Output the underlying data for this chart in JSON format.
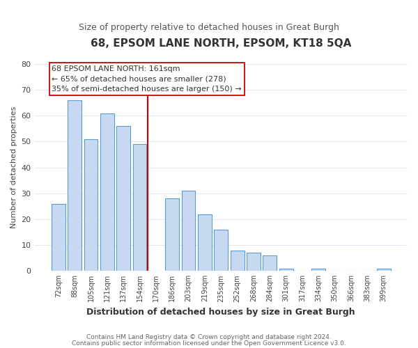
{
  "title": "68, EPSOM LANE NORTH, EPSOM, KT18 5QA",
  "subtitle": "Size of property relative to detached houses in Great Burgh",
  "xlabel": "Distribution of detached houses by size in Great Burgh",
  "ylabel": "Number of detached properties",
  "bar_labels": [
    "72sqm",
    "88sqm",
    "105sqm",
    "121sqm",
    "137sqm",
    "154sqm",
    "170sqm",
    "186sqm",
    "203sqm",
    "219sqm",
    "235sqm",
    "252sqm",
    "268sqm",
    "284sqm",
    "301sqm",
    "317sqm",
    "334sqm",
    "350sqm",
    "366sqm",
    "383sqm",
    "399sqm"
  ],
  "bar_heights": [
    26,
    66,
    51,
    61,
    56,
    49,
    0,
    28,
    31,
    22,
    16,
    8,
    7,
    6,
    1,
    0,
    1,
    0,
    0,
    0,
    1
  ],
  "bar_color": "#c6d9f1",
  "bar_edge_color": "#5b9bd5",
  "ylim": [
    0,
    80
  ],
  "yticks": [
    0,
    10,
    20,
    30,
    40,
    50,
    60,
    70,
    80
  ],
  "vline_x_index": 6,
  "vline_color": "#cc0000",
  "annotation_lines": [
    "68 EPSOM LANE NORTH: 161sqm",
    "← 65% of detached houses are smaller (278)",
    "35% of semi-detached houses are larger (150) →"
  ],
  "annotation_box_edge": "#cc0000",
  "footer_line1": "Contains HM Land Registry data © Crown copyright and database right 2024.",
  "footer_line2": "Contains public sector information licensed under the Open Government Licence v3.0.",
  "background_color": "#ffffff",
  "grid_color": "#dde8f4"
}
